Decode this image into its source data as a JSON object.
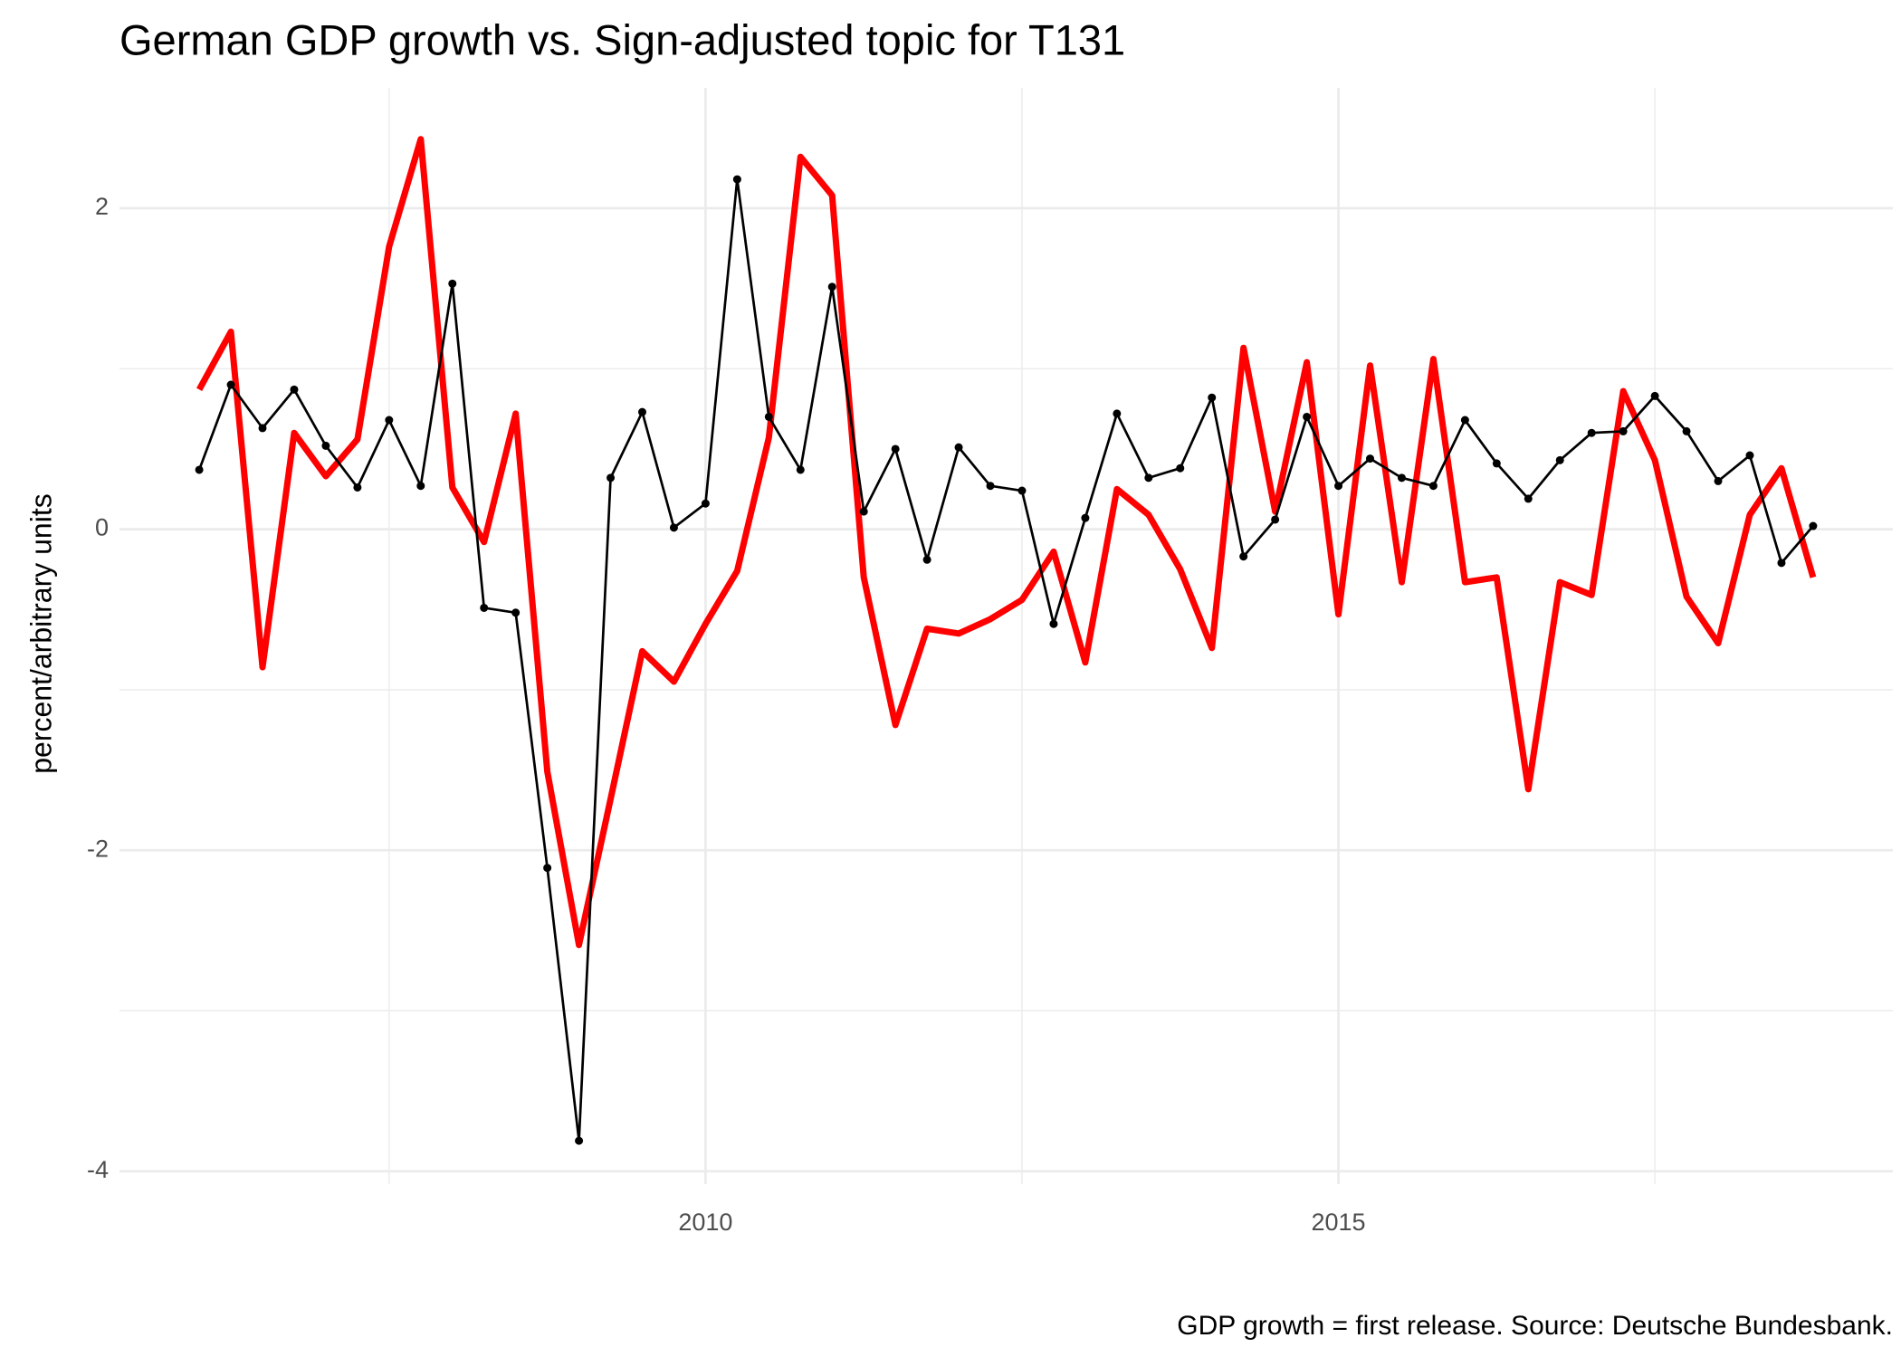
{
  "chart_data": {
    "type": "line",
    "title": "German GDP growth vs. Sign-adjusted topic for T131",
    "ylabel": "percent/arbitrary units",
    "caption": "GDP growth = first release. Source: Deutsche Bundesbank.",
    "x": [
      2006.0,
      2006.25,
      2006.5,
      2006.75,
      2007.0,
      2007.25,
      2007.5,
      2007.75,
      2008.0,
      2008.25,
      2008.5,
      2008.75,
      2009.0,
      2009.25,
      2009.5,
      2009.75,
      2010.0,
      2010.25,
      2010.5,
      2010.75,
      2011.0,
      2011.25,
      2011.5,
      2011.75,
      2012.0,
      2012.25,
      2012.5,
      2012.75,
      2013.0,
      2013.25,
      2013.5,
      2013.75,
      2014.0,
      2014.25,
      2014.5,
      2014.75,
      2015.0,
      2015.25,
      2015.5,
      2015.75,
      2016.0,
      2016.25,
      2016.5,
      2016.75,
      2017.0,
      2017.25,
      2017.5,
      2017.75,
      2018.0,
      2018.25,
      2018.5,
      2018.75
    ],
    "series": [
      {
        "color": "#ff0000",
        "markers": false,
        "values": [
          0.87,
          1.23,
          -0.86,
          0.6,
          0.33,
          0.56,
          1.76,
          2.43,
          0.26,
          -0.08,
          0.72,
          -1.51,
          -2.59,
          -1.68,
          -0.76,
          -0.95,
          -0.59,
          -0.26,
          0.57,
          2.32,
          2.08,
          -0.3,
          -1.22,
          -0.62,
          -0.65,
          -0.56,
          -0.44,
          -0.14,
          -0.83,
          0.25,
          0.09,
          -0.25,
          -0.74,
          1.13,
          0.11,
          1.04,
          -0.53,
          1.02,
          -0.33,
          1.06,
          -0.33,
          -0.3,
          -1.62,
          -0.33,
          -0.41,
          0.86,
          0.43,
          -0.42,
          -0.71,
          0.09,
          0.38,
          -0.3
        ]
      },
      {
        "color": "#000000",
        "markers": true,
        "values": [
          0.37,
          0.9,
          0.63,
          0.87,
          0.52,
          0.26,
          0.68,
          0.27,
          1.53,
          -0.49,
          -0.52,
          -2.11,
          -3.81,
          0.32,
          0.73,
          0.01,
          0.16,
          2.18,
          0.7,
          0.37,
          1.51,
          0.11,
          0.5,
          -0.19,
          0.51,
          0.27,
          0.24,
          -0.59,
          0.07,
          0.72,
          0.32,
          0.38,
          0.82,
          -0.17,
          0.06,
          0.7,
          0.27,
          0.44,
          0.32,
          0.27,
          0.68,
          0.41,
          0.19,
          0.43,
          0.6,
          0.61,
          0.83,
          0.61,
          0.3,
          0.46,
          -0.21,
          0.02
        ]
      }
    ],
    "xlim": [
      2005.37,
      2019.38
    ],
    "ylim": [
      -4.08,
      2.75
    ],
    "xticks": [
      2010,
      2015
    ],
    "xminor": [
      2007.5,
      2012.5,
      2017.5
    ],
    "yticks": [
      -4,
      -2,
      0,
      2
    ],
    "yminor": [
      -3,
      -1,
      1
    ],
    "grid": true
  }
}
